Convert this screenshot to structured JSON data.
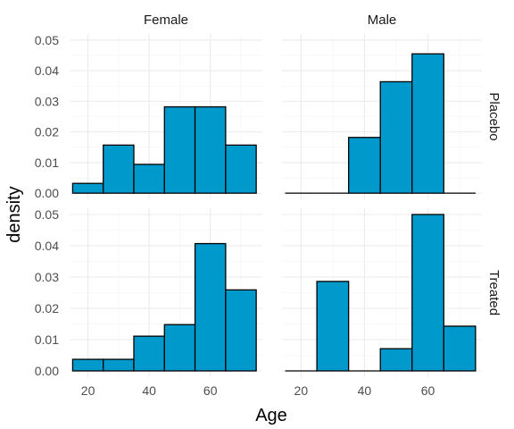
{
  "chart_data": {
    "type": "bar",
    "subtype": "faceted histogram",
    "xlabel": "Age",
    "ylabel": "density",
    "xlim": [
      14,
      77
    ],
    "ylim": [
      -0.002,
      0.052
    ],
    "x_ticks": [
      20,
      40,
      60
    ],
    "y_ticks": [
      0.0,
      0.01,
      0.02,
      0.03,
      0.04,
      0.05
    ],
    "y_tick_labels": [
      "0.00",
      "0.01",
      "0.02",
      "0.03",
      "0.04",
      "0.05"
    ],
    "bin_edges": [
      15,
      25,
      35,
      45,
      55,
      65,
      75
    ],
    "col_facets": [
      "Female",
      "Male"
    ],
    "row_facets": [
      "Placebo",
      "Treated"
    ],
    "bar_color": "#0099cc",
    "bar_outline": "#000000",
    "grid": true,
    "panels": [
      {
        "col": "Female",
        "row": "Placebo",
        "values": [
          0.0032,
          0.0157,
          0.0094,
          0.0282,
          0.0282,
          0.0157
        ]
      },
      {
        "col": "Male",
        "row": "Placebo",
        "values": [
          0.0,
          0.0,
          0.0182,
          0.0364,
          0.0455,
          0.0
        ]
      },
      {
        "col": "Female",
        "row": "Treated",
        "values": [
          0.0037,
          0.0037,
          0.0111,
          0.0148,
          0.0407,
          0.0259
        ]
      },
      {
        "col": "Male",
        "row": "Treated",
        "values": [
          0.0,
          0.0286,
          0.0,
          0.0071,
          0.05,
          0.0143
        ]
      }
    ]
  }
}
